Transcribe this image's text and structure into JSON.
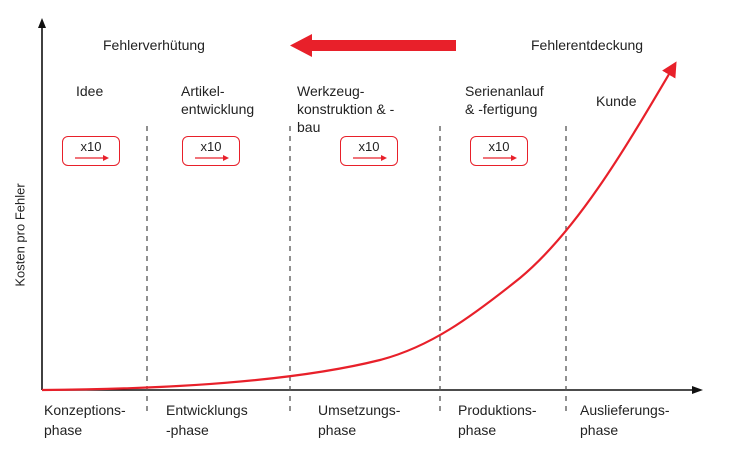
{
  "header": {
    "left_label": "Fehlerverhütung",
    "right_label": "Fehlerentdeckung"
  },
  "y_axis_label": "Kosten pro Fehler",
  "stages": [
    {
      "label": "Idee"
    },
    {
      "label": "Artikel-\nentwicklung"
    },
    {
      "label": "Werkzeug-\nkonstruktion & -\nbau"
    },
    {
      "label": "Serienanlauf\n& -fertigung"
    },
    {
      "label": "Kunde"
    }
  ],
  "multipliers": [
    "x10",
    "x10",
    "x10",
    "x10"
  ],
  "phases": [
    {
      "label": "Konzeptions-\nphase"
    },
    {
      "label": "Entwicklungs\n-phase"
    },
    {
      "label": "Umsetzungs-\nphase"
    },
    {
      "label": "Produktions-\nphase"
    },
    {
      "label": "Auslieferungs-\nphase"
    }
  ],
  "colors": {
    "accent": "#e8202a",
    "axis": "#111111",
    "divider": "#555555",
    "text": "#222222"
  }
}
